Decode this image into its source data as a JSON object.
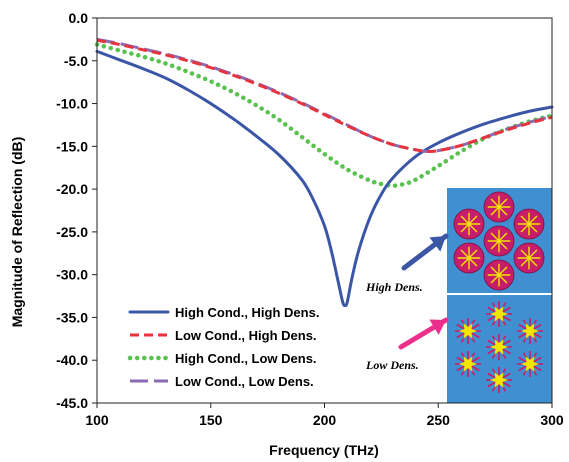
{
  "chart_data": {
    "type": "line",
    "xlabel": "Frequency (THz)",
    "ylabel": "Magnitude of Reflection (dB)",
    "xlim": [
      100,
      300
    ],
    "ylim": [
      -45,
      0
    ],
    "x_ticks": [
      100,
      150,
      200,
      250,
      300
    ],
    "x_tick_labels": [
      "100",
      "150",
      "200",
      "250",
      "300"
    ],
    "y_ticks": [
      0,
      -5,
      -10,
      -15,
      -20,
      -25,
      -30,
      -35,
      -40,
      -45
    ],
    "y_tick_labels": [
      "0.0",
      "-5.0",
      "-10.0",
      "-15.0",
      "-20.0",
      "-25.0",
      "-30.0",
      "-35.0",
      "-40.0",
      "-45.0"
    ],
    "grid": false,
    "legend_position": "bottom-left",
    "series": [
      {
        "name": "High Cond., High Dens.",
        "color": "#3b56a6",
        "style": "solid",
        "x": [
          100,
          110,
          120,
          130,
          140,
          150,
          160,
          170,
          180,
          190,
          195,
          200,
          203,
          206,
          208,
          209,
          210,
          212,
          215,
          220,
          225,
          230,
          240,
          250,
          260,
          270,
          280,
          290,
          300
        ],
        "y": [
          -3.9,
          -4.9,
          -5.9,
          -7.0,
          -8.4,
          -10.0,
          -11.8,
          -13.8,
          -16.0,
          -18.9,
          -21.2,
          -24.3,
          -27.2,
          -30.8,
          -33.2,
          -33.6,
          -33.2,
          -30.5,
          -27.2,
          -23.3,
          -20.6,
          -18.7,
          -16.2,
          -14.6,
          -13.4,
          -12.4,
          -11.6,
          -10.9,
          -10.4
        ]
      },
      {
        "name": "Low Cond., High Dens.",
        "color": "#e8323c",
        "style": "dashed",
        "x": [
          100,
          110,
          120,
          130,
          140,
          150,
          160,
          170,
          180,
          190,
          200,
          210,
          220,
          230,
          240,
          245,
          250,
          260,
          270,
          280,
          290,
          300
        ],
        "y": [
          -2.6,
          -3.1,
          -3.7,
          -4.3,
          -5.0,
          -5.8,
          -6.7,
          -7.7,
          -8.8,
          -10.0,
          -11.3,
          -12.6,
          -13.8,
          -14.8,
          -15.4,
          -15.6,
          -15.5,
          -14.9,
          -14.0,
          -13.1,
          -12.3,
          -11.6
        ]
      },
      {
        "name": "High Cond., Low Dens.",
        "color": "#59c24e",
        "style": "dotted",
        "x": [
          100,
          110,
          120,
          130,
          140,
          150,
          160,
          170,
          180,
          190,
          200,
          210,
          220,
          225,
          230,
          235,
          240,
          250,
          260,
          270,
          280,
          290,
          300
        ],
        "y": [
          -3.1,
          -3.8,
          -4.5,
          -5.3,
          -6.3,
          -7.4,
          -8.7,
          -10.2,
          -11.9,
          -13.9,
          -15.9,
          -17.7,
          -19.0,
          -19.4,
          -19.6,
          -19.4,
          -18.9,
          -17.3,
          -15.6,
          -14.1,
          -13.0,
          -12.1,
          -11.4
        ]
      },
      {
        "name": "Low Cond., Low Dens.",
        "color": "#8b6bb1",
        "style": "longdash",
        "x": [
          100,
          110,
          120,
          130,
          140,
          150,
          160,
          170,
          180,
          190,
          200,
          210,
          220,
          230,
          240,
          245,
          250,
          260,
          270,
          280,
          290,
          300
        ],
        "y": [
          -2.5,
          -3.0,
          -3.6,
          -4.2,
          -4.9,
          -5.7,
          -6.6,
          -7.6,
          -8.7,
          -9.9,
          -11.2,
          -12.5,
          -13.8,
          -14.8,
          -15.4,
          -15.6,
          -15.5,
          -14.9,
          -14.0,
          -13.0,
          -12.2,
          -11.5
        ]
      }
    ],
    "inset": {
      "background_color": "#3f8fd1",
      "particle_color": "#c81d6a",
      "rod_color": "#f2e600",
      "top_label": "High Dens.",
      "bottom_label": "Low Dens.",
      "top_arrow_color": "#3c55a5",
      "bottom_arrow_color": "#ec2f8a"
    }
  }
}
